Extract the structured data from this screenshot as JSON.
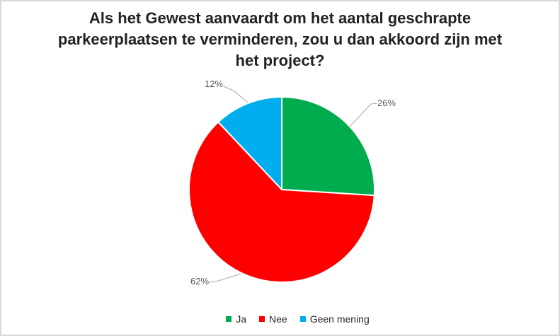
{
  "window": {
    "background_color": "#FFFFFF",
    "border_color": "#D8D8D8"
  },
  "chart_data": {
    "type": "pie",
    "title": "Als het Gewest aanvaardt om het aantal geschrapte parkeerplaatsen te verminderen, zou u dan akkoord zijn met het project?",
    "categories": [
      "Ja",
      "Nee",
      "Geen mening"
    ],
    "values": [
      26,
      62,
      12
    ],
    "labels": [
      "26%",
      "62%",
      "12%"
    ],
    "colors": [
      "#00AC4E",
      "#FF0000",
      "#00AEEF"
    ],
    "unit": "%",
    "start_angle_deg": 0,
    "direction": "clockwise",
    "legend_position": "bottom",
    "title_color": "#222222",
    "label_color": "#595959",
    "leader_line_color": "#A6A6A6",
    "slice_border_color": "#FFFFFF"
  }
}
